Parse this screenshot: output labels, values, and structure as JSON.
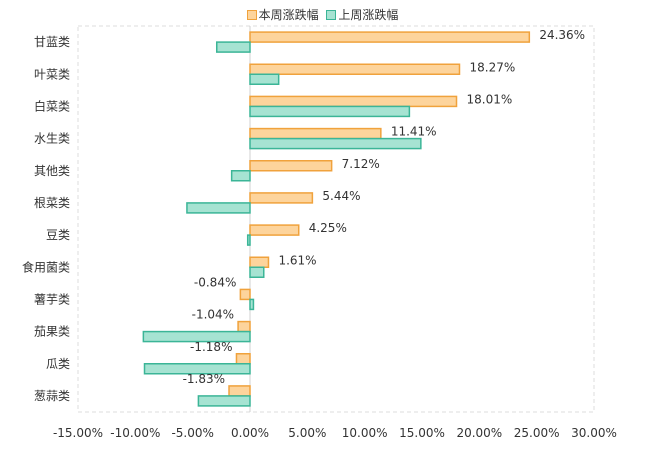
{
  "chart_data": {
    "type": "bar",
    "orientation": "horizontal",
    "categories": [
      "甘蓝类",
      "叶菜类",
      "白菜类",
      "水生类",
      "其他类",
      "根菜类",
      "豆类",
      "食用菌类",
      "薯芋类",
      "茄果类",
      "瓜类",
      "葱蒜类"
    ],
    "series": [
      {
        "name": "本周涨跌幅",
        "values": [
          24.36,
          18.27,
          18.01,
          11.41,
          7.12,
          5.44,
          4.25,
          1.61,
          -0.84,
          -1.04,
          -1.18,
          -1.83
        ],
        "labels": [
          "24.36%",
          "18.27%",
          "18.01%",
          "11.41%",
          "7.12%",
          "5.44%",
          "4.25%",
          "1.61%",
          "-0.84%",
          "-1.04%",
          "-1.18%",
          "-1.83%"
        ],
        "fill": "#fdd49c",
        "stroke": "#f0a23c"
      },
      {
        "name": "上周涨跌幅",
        "values": [
          -2.9,
          2.5,
          13.9,
          14.9,
          -1.6,
          -5.5,
          -0.2,
          1.2,
          0.3,
          -9.3,
          -9.2,
          -4.5
        ],
        "fill": "#a6e3d2",
        "stroke": "#3bb597"
      }
    ],
    "xlim": [
      -15,
      30
    ],
    "xticks": [
      "-15.00%",
      "-10.00%",
      "-5.00%",
      "0.00%",
      "5.00%",
      "10.00%",
      "15.00%",
      "20.00%",
      "25.00%",
      "30.00%"
    ],
    "xtick_values": [
      -15,
      -10,
      -5,
      0,
      5,
      10,
      15,
      20,
      25,
      30
    ],
    "legend_position": "top",
    "grid": false
  }
}
